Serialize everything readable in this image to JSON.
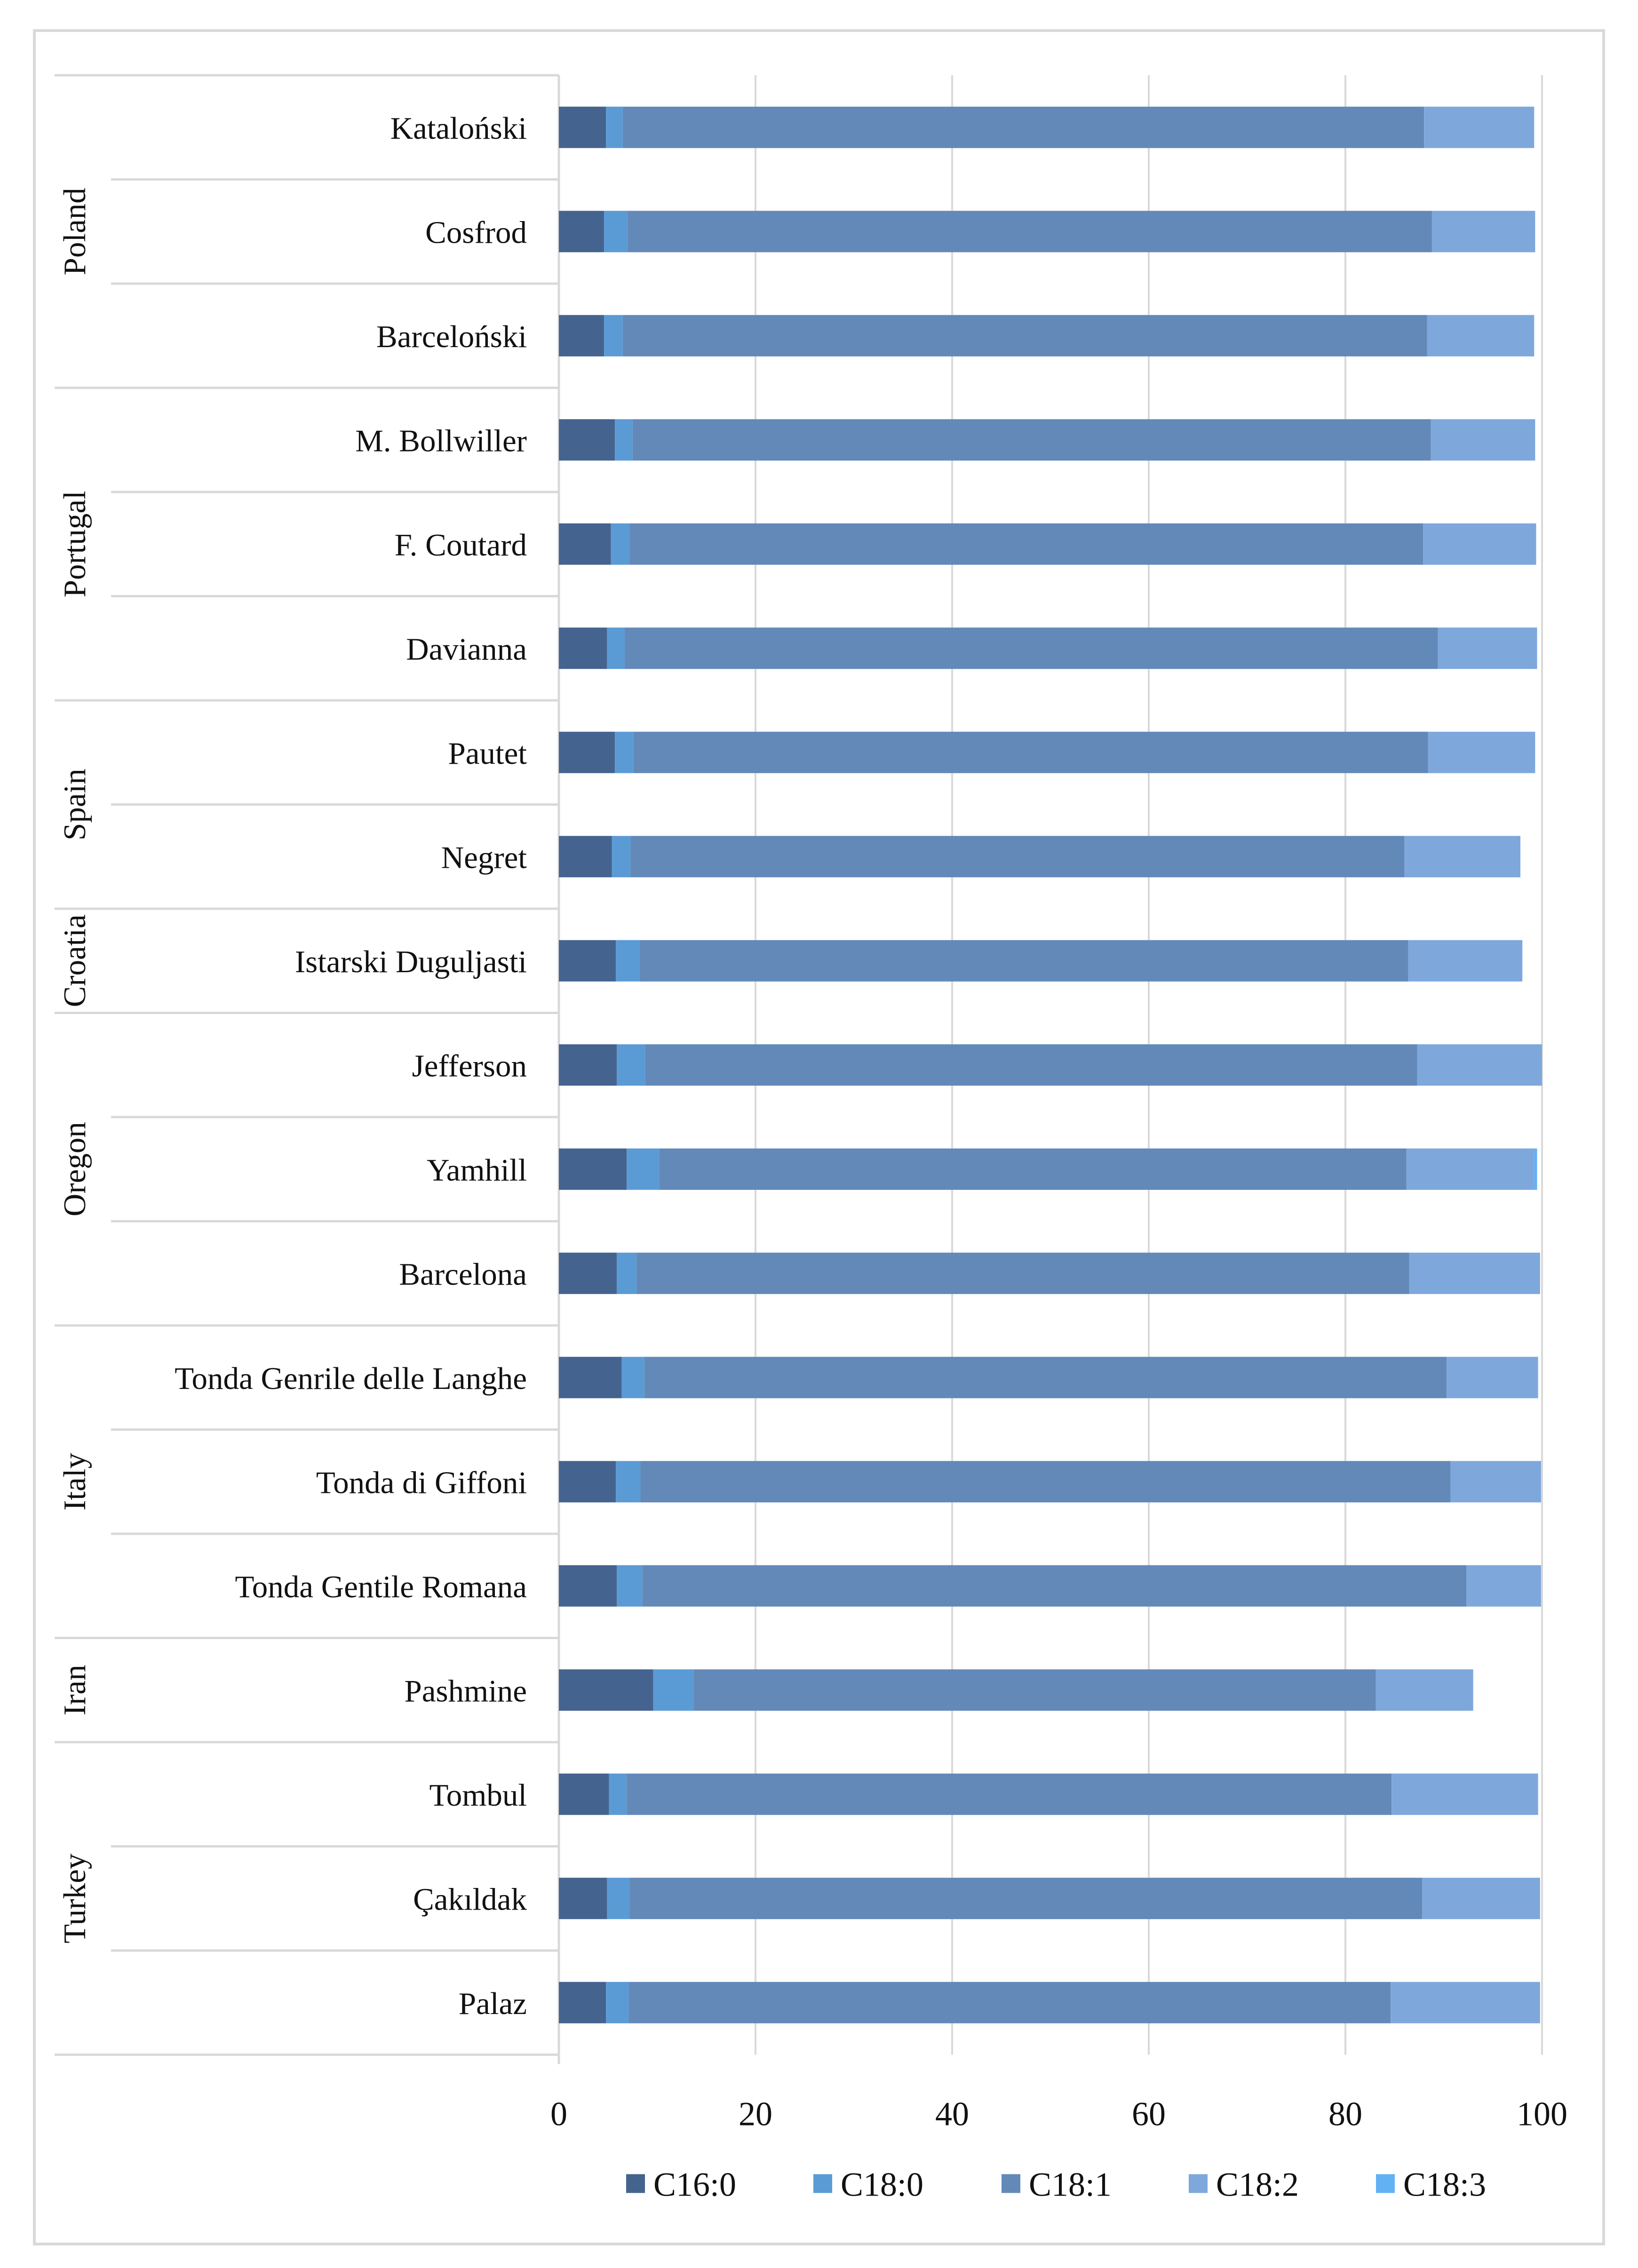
{
  "chart_data": {
    "type": "bar",
    "orientation": "horizontal",
    "stacked": true,
    "title": "",
    "xlabel": "",
    "ylabel": "",
    "xlim": [
      0,
      100
    ],
    "x_ticks": [
      "0",
      "20",
      "40",
      "60",
      "80",
      "100"
    ],
    "grid": true,
    "legend_position": "bottom",
    "groups": [
      {
        "name": "Poland",
        "categories": [
          "Kataloński",
          "Cosfrod",
          "Barceloński"
        ]
      },
      {
        "name": "Portugal",
        "categories": [
          "M. Bollwiller",
          "F. Coutard",
          "Davianna"
        ]
      },
      {
        "name": "Spain",
        "categories": [
          "Pautet",
          "Negret"
        ]
      },
      {
        "name": "Croatia",
        "categories": [
          "Istarski Duguljasti"
        ]
      },
      {
        "name": "Oregon",
        "categories": [
          "Jefferson",
          "Yamhill",
          "Barcelona"
        ]
      },
      {
        "name": "Italy",
        "categories": [
          "Tonda Genrile delle Langhe",
          "Tonda di Giffoni",
          "Tonda Gentile Romana"
        ]
      },
      {
        "name": "Iran",
        "categories": [
          "Pashmine"
        ]
      },
      {
        "name": "Turkey",
        "categories": [
          "Tombul",
          "Çakıldak",
          "Palaz"
        ]
      }
    ],
    "categories": [
      "Kataloński",
      "Cosfrod",
      "Barceloński",
      "M. Bollwiller",
      "F. Coutard",
      "Davianna",
      "Pautet",
      "Negret",
      "Istarski Duguljasti",
      "Jefferson",
      "Yamhill",
      "Barcelona",
      "Tonda Genrile delle Langhe",
      "Tonda di Giffoni",
      "Tonda Gentile Romana",
      "Pashmine",
      "Tombul",
      "Çakıldak",
      "Palaz"
    ],
    "series": [
      {
        "name": "C16:0",
        "color": "#44648f",
        "values": [
          4.8,
          4.6,
          4.6,
          5.7,
          5.3,
          4.9,
          5.7,
          5.4,
          5.8,
          5.9,
          6.9,
          5.9,
          6.4,
          5.8,
          5.9,
          9.6,
          5.1,
          4.9,
          4.8
        ]
      },
      {
        "name": "C18:0",
        "color": "#5b9bd5",
        "values": [
          1.7,
          2.4,
          1.9,
          1.8,
          1.9,
          1.8,
          1.9,
          1.9,
          2.4,
          2.9,
          3.3,
          2.0,
          2.3,
          2.5,
          2.6,
          4.1,
          1.8,
          2.3,
          2.3
        ]
      },
      {
        "name": "C18:1",
        "color": "#6389b8",
        "values": [
          81.5,
          81.8,
          81.8,
          81.2,
          80.7,
          82.7,
          80.8,
          78.7,
          78.2,
          78.5,
          76.0,
          78.6,
          81.6,
          82.4,
          83.8,
          69.4,
          77.8,
          80.6,
          77.5
        ]
      },
      {
        "name": "C18:2",
        "color": "#7ea8dc",
        "values": [
          11.2,
          10.5,
          10.9,
          10.6,
          11.5,
          10.1,
          10.9,
          11.8,
          11.6,
          12.7,
          13.0,
          13.3,
          9.3,
          9.2,
          7.6,
          9.9,
          14.9,
          12.0,
          15.2
        ]
      },
      {
        "name": "C18:3",
        "color": "#63b1f5",
        "values": [
          0.0,
          0.0,
          0.0,
          0.0,
          0.0,
          0.0,
          0.0,
          0.0,
          0.0,
          0.0,
          0.3,
          0.0,
          0.0,
          0.0,
          0.0,
          0.0,
          0.0,
          0.0,
          0.0
        ]
      }
    ]
  }
}
